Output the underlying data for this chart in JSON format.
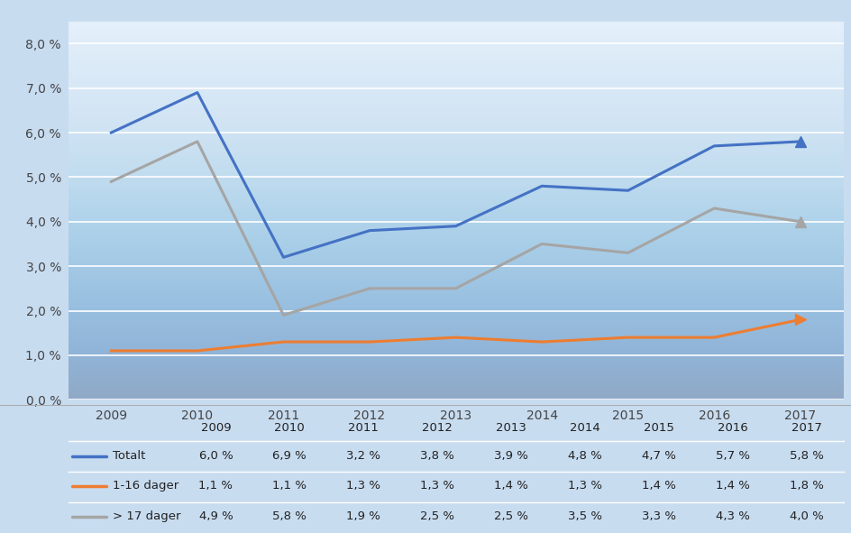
{
  "years": [
    2009,
    2010,
    2011,
    2012,
    2013,
    2014,
    2015,
    2016,
    2017
  ],
  "totalt": [
    6.0,
    6.9,
    3.2,
    3.8,
    3.9,
    4.8,
    4.7,
    5.7,
    5.8
  ],
  "dager_1_16": [
    1.1,
    1.1,
    1.3,
    1.3,
    1.4,
    1.3,
    1.4,
    1.4,
    1.8
  ],
  "dager_17plus": [
    4.9,
    5.8,
    1.9,
    2.5,
    2.5,
    3.5,
    3.3,
    4.3,
    4.0
  ],
  "totalt_color": "#4472C4",
  "dager_1_16_color": "#ED7D31",
  "dager_17plus_color": "#A5A5A5",
  "bg_light": "#daeaf8",
  "bg_dark": "#b8d4ee",
  "table_bg": "#c8dcf0",
  "ytick_labels": [
    "0,0 %",
    "1,0 %",
    "2,0 %",
    "3,0 %",
    "4,0 %",
    "5,0 %",
    "6,0 %",
    "7,0 %",
    "8,0 %"
  ],
  "table_rows": [
    [
      "Totalt",
      "6,0 %",
      "6,9 %",
      "3,2 %",
      "3,8 %",
      "3,9 %",
      "4,8 %",
      "4,7 %",
      "5,7 %",
      "5,8 %"
    ],
    [
      "1-16 dager",
      "1,1 %",
      "1,1 %",
      "1,3 %",
      "1,3 %",
      "1,4 %",
      "1,3 %",
      "1,4 %",
      "1,4 %",
      "1,8 %"
    ],
    [
      "> 17 dager",
      "4,9 %",
      "5,8 %",
      "1,9 %",
      "2,5 %",
      "2,5 %",
      "3,5 %",
      "3,3 %",
      "4,3 %",
      "4,0 %"
    ]
  ],
  "table_year_headers": [
    "2009",
    "2010",
    "2011",
    "2012",
    "2013",
    "2014",
    "2015",
    "2016",
    "2017"
  ]
}
